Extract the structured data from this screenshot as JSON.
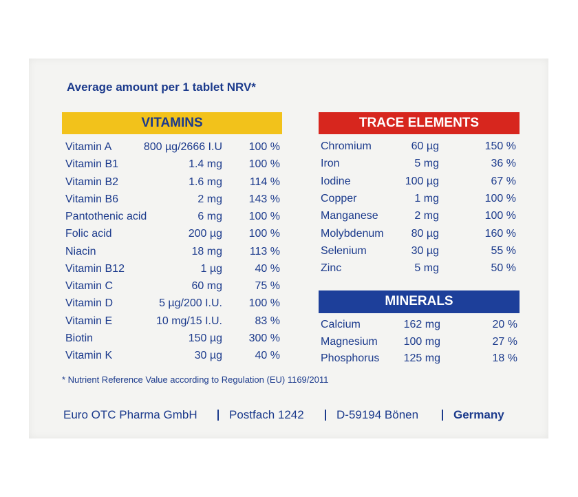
{
  "title": "Average amount per 1 tablet NRV*",
  "vitamins": {
    "heading": "VITAMINS",
    "rows": [
      [
        "Vitamin A",
        "800 µg/2666 I.U",
        "100 %"
      ],
      [
        "Vitamin B1",
        "1.4 mg",
        "100 %"
      ],
      [
        "Vitamin B2",
        "1.6 mg",
        "114 %"
      ],
      [
        "Vitamin B6",
        "2 mg",
        "143 %"
      ],
      [
        "Pantothenic acid",
        "6 mg",
        "100 %"
      ],
      [
        "Folic acid",
        "200 µg",
        "100 %"
      ],
      [
        "Niacin",
        "18 mg",
        "113 %"
      ],
      [
        "Vitamin B12",
        "1 µg",
        "40 %"
      ],
      [
        "Vitamin C",
        "60 mg",
        "75 %"
      ],
      [
        "Vitamin D",
        "5 µg/200 I.U.",
        "100 %"
      ],
      [
        "Vitamin E",
        "10 mg/15 I.U.",
        "83 %"
      ],
      [
        "Biotin",
        "150 µg",
        "300 %"
      ],
      [
        "Vitamin K",
        "30 µg",
        "40 %"
      ]
    ]
  },
  "trace_elements": {
    "heading": "TRACE ELEMENTS",
    "rows": [
      [
        "Chromium",
        "60 µg",
        "150 %"
      ],
      [
        "Iron",
        "5 mg",
        "36 %"
      ],
      [
        "Iodine",
        "100 µg",
        "67 %"
      ],
      [
        "Copper",
        "1 mg",
        "100 %"
      ],
      [
        "Manganese",
        "2 mg",
        "100 %"
      ],
      [
        "Molybdenum",
        "80 µg",
        "160 %"
      ],
      [
        "Selenium",
        "30 µg",
        "55 %"
      ],
      [
        "Zinc",
        "5 mg",
        "50 %"
      ]
    ]
  },
  "minerals": {
    "heading": "MINERALS",
    "rows": [
      [
        "Calcium",
        "162 mg",
        "20 %"
      ],
      [
        "Magnesium",
        "100 mg",
        "27 %"
      ],
      [
        "Phosphorus",
        "125 mg",
        "18 %"
      ]
    ]
  },
  "footnote": "* Nutrient Reference Value according to Regulation (EU) 1169/2011",
  "footer": [
    "Euro OTC Pharma GmbH",
    "Postfach 1242",
    "D-59194 Bönen",
    "Germany"
  ]
}
